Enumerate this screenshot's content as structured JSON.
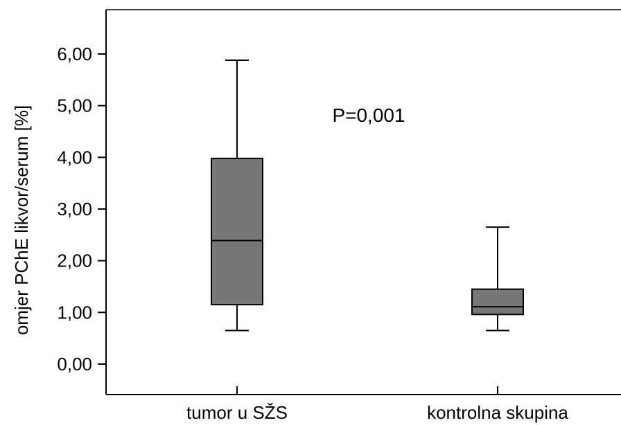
{
  "chart_data": {
    "type": "boxplot",
    "ylabel": "omjer PChE likvor/serum [%]",
    "ylim": [
      -0.6,
      6.9
    ],
    "yticks": [
      "0,00",
      "1,00",
      "2,00",
      "3,00",
      "4,00",
      "5,00",
      "6,00"
    ],
    "ytick_values": [
      0,
      1,
      2,
      3,
      4,
      5,
      6
    ],
    "categories": [
      "tumor u SŽS",
      "kontrolna skupina"
    ],
    "boxes": [
      {
        "category": "tumor u SŽS",
        "whisker_low": 0.65,
        "q1": 1.15,
        "median": 2.39,
        "q3": 3.98,
        "whisker_high": 5.88
      },
      {
        "category": "kontrolna skupina",
        "whisker_low": 0.65,
        "q1": 0.96,
        "median": 1.11,
        "q3": 1.45,
        "whisker_high": 2.65
      }
    ],
    "annotation": "P=0,001",
    "box_color": "#777777",
    "line_color": "#000000"
  }
}
